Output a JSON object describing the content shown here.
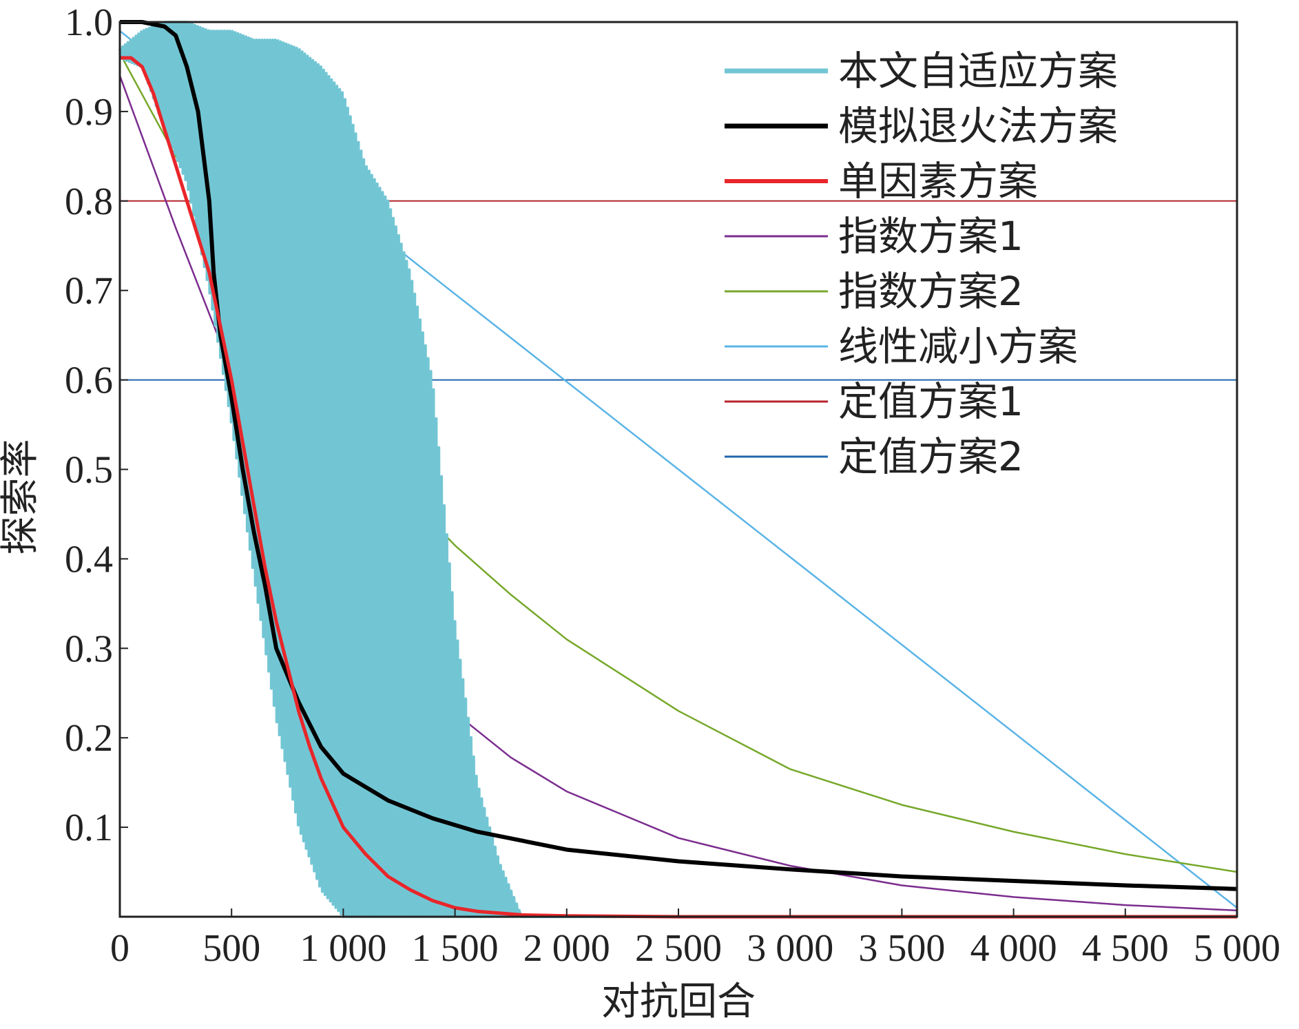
{
  "chart_data": {
    "type": "line",
    "title": "",
    "xlabel": "对抗回合",
    "ylabel": "探索率",
    "xlim": [
      0,
      5000
    ],
    "ylim": [
      0,
      1.0
    ],
    "grid": false,
    "legend_position": "top-right",
    "x_ticks": [
      0,
      500,
      1000,
      1500,
      2000,
      2500,
      3000,
      3500,
      4000,
      4500,
      5000
    ],
    "x_tick_labels": [
      "0",
      "500",
      "1 000",
      "1 500",
      "2 000",
      "2 500",
      "3 000",
      "3 500",
      "4 000",
      "4 500",
      "5 000"
    ],
    "y_ticks": [
      0.1,
      0.2,
      0.3,
      0.4,
      0.5,
      0.6,
      0.7,
      0.8,
      0.9,
      1.0
    ],
    "y_tick_labels": [
      "0.1",
      "0.2",
      "0.3",
      "0.4",
      "0.5",
      "0.6",
      "0.7",
      "0.8",
      "0.9",
      "1.0"
    ],
    "series": [
      {
        "name": "本文自适应方案",
        "color": "#72c6d4",
        "style": "oscillating",
        "x": [
          0,
          100,
          200,
          300,
          400,
          500,
          600,
          700,
          800,
          900,
          1000,
          1100,
          1200,
          1300,
          1400,
          1500,
          1600,
          1700,
          1800
        ],
        "upper": [
          0.97,
          0.99,
          1.0,
          1.0,
          0.99,
          0.99,
          0.98,
          0.98,
          0.97,
          0.95,
          0.92,
          0.84,
          0.8,
          0.72,
          0.6,
          0.33,
          0.15,
          0.06,
          0.0
        ],
        "lower": [
          0.96,
          0.95,
          0.88,
          0.82,
          0.7,
          0.55,
          0.38,
          0.22,
          0.1,
          0.03,
          0.0,
          0.0,
          0.0,
          0.0,
          0.0,
          0.0,
          0.0,
          0.0,
          0.0
        ]
      },
      {
        "name": "模拟退火法方案",
        "color": "#000000",
        "x": [
          0,
          100,
          200,
          250,
          300,
          350,
          400,
          420,
          450,
          500,
          550,
          600,
          650,
          700,
          800,
          900,
          1000,
          1200,
          1400,
          1600,
          2000,
          2500,
          3000,
          3500,
          4000,
          4500,
          5000
        ],
        "y": [
          1.0,
          1.0,
          0.995,
          0.985,
          0.95,
          0.9,
          0.8,
          0.72,
          0.65,
          0.58,
          0.5,
          0.43,
          0.37,
          0.3,
          0.24,
          0.19,
          0.16,
          0.13,
          0.11,
          0.095,
          0.075,
          0.062,
          0.053,
          0.045,
          0.04,
          0.035,
          0.031
        ]
      },
      {
        "name": "单因素方案",
        "color": "#e8262a",
        "x": [
          0,
          50,
          100,
          150,
          200,
          250,
          300,
          350,
          400,
          450,
          500,
          550,
          600,
          650,
          700,
          750,
          800,
          850,
          900,
          1000,
          1100,
          1200,
          1300,
          1400,
          1500,
          1600,
          1800,
          2000,
          2500,
          3000,
          5000
        ],
        "y": [
          0.96,
          0.96,
          0.95,
          0.92,
          0.88,
          0.84,
          0.8,
          0.76,
          0.72,
          0.66,
          0.6,
          0.53,
          0.46,
          0.39,
          0.33,
          0.28,
          0.23,
          0.19,
          0.155,
          0.1,
          0.07,
          0.045,
          0.03,
          0.018,
          0.01,
          0.006,
          0.002,
          0.001,
          0.0,
          0.0,
          0.0
        ]
      },
      {
        "name": "指数方案1",
        "color": "#7b2d8e",
        "x": [
          0,
          250,
          500,
          750,
          1000,
          1250,
          1500,
          1750,
          2000,
          2500,
          3000,
          3500,
          4000,
          4500,
          5000
        ],
        "y": [
          0.94,
          0.77,
          0.61,
          0.47,
          0.37,
          0.29,
          0.228,
          0.178,
          0.14,
          0.088,
          0.057,
          0.035,
          0.022,
          0.013,
          0.007
        ]
      },
      {
        "name": "指数方案2",
        "color": "#76a82a",
        "x": [
          0,
          250,
          500,
          750,
          1000,
          1250,
          1500,
          1750,
          2000,
          2500,
          3000,
          3500,
          4000,
          4500,
          5000
        ],
        "y": [
          0.965,
          0.85,
          0.75,
          0.64,
          0.55,
          0.48,
          0.415,
          0.36,
          0.31,
          0.23,
          0.165,
          0.125,
          0.095,
          0.07,
          0.05
        ]
      },
      {
        "name": "线性减小方案",
        "color": "#5ab4e6",
        "x": [
          0,
          5000
        ],
        "y": [
          0.99,
          0.01
        ]
      },
      {
        "name": "定值方案1",
        "color": "#b5232d",
        "x": [
          0,
          5000
        ],
        "y": [
          0.8,
          0.8
        ]
      },
      {
        "name": "定值方案2",
        "color": "#1f66ad",
        "x": [
          0,
          5000
        ],
        "y": [
          0.6,
          0.6
        ]
      }
    ]
  }
}
